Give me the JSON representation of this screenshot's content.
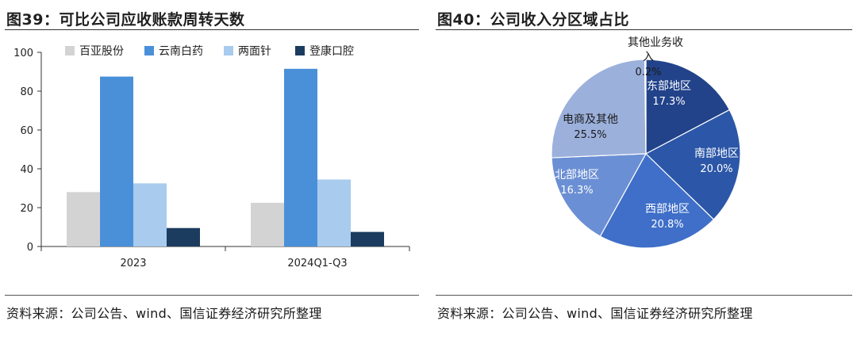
{
  "colors": {
    "baiya": "#d3d3d3",
    "yunnan": "#4a90d9",
    "liangmian": "#a8cbee",
    "dengkang": "#1b3c5e",
    "pie": [
      "#22438a",
      "#2c57a8",
      "#3f6fc8",
      "#6b8fd4",
      "#9cb0dc",
      "#e0e4f0"
    ]
  },
  "left": {
    "title": "图39：可比公司应收账款周转天数",
    "source": "资料来源：公司公告、wind、国信证券经济研究所整理",
    "chart_data": {
      "type": "bar",
      "categories": [
        "2023",
        "2024Q1-Q3"
      ],
      "series": [
        {
          "name": "百亚股份",
          "values": [
            28,
            22.5
          ]
        },
        {
          "name": "云南白药",
          "values": [
            87.5,
            91.5
          ]
        },
        {
          "name": "两面针",
          "values": [
            32.5,
            34.5
          ]
        },
        {
          "name": "登康口腔",
          "values": [
            9.5,
            7.5
          ]
        }
      ],
      "ylim": [
        0,
        100
      ],
      "yticks": [
        0,
        20,
        40,
        60,
        80,
        100
      ],
      "legend": "top",
      "grid": false
    }
  },
  "right": {
    "title": "图40：公司收入分区域占比",
    "source": "资料来源：公司公告、wind、国信证券经济研究所整理",
    "chart_data": {
      "type": "pie",
      "slices": [
        {
          "label": "东部地区",
          "value": 17.3,
          "pct": "17.3%"
        },
        {
          "label": "南部地区",
          "value": 20.0,
          "pct": "20.0%"
        },
        {
          "label": "西部地区",
          "value": 20.8,
          "pct": "20.8%"
        },
        {
          "label": "北部地区",
          "value": 16.3,
          "pct": "16.3%"
        },
        {
          "label": "电商及其他",
          "value": 25.5,
          "pct": "25.5%"
        },
        {
          "label_lines": [
            "其他业务收",
            "入"
          ],
          "label": "其他业务收入",
          "value": 0.2,
          "pct": "0.2%"
        }
      ]
    }
  }
}
